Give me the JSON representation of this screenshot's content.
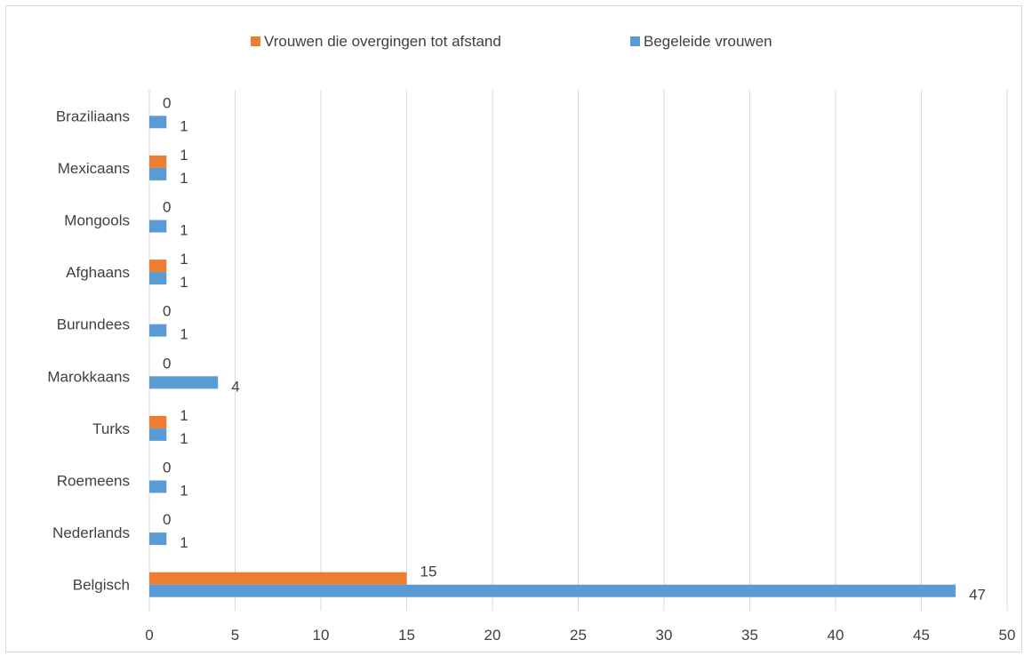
{
  "chart_data": {
    "type": "bar",
    "orientation": "horizontal",
    "categories": [
      "Braziliaans",
      "Mexicaans",
      "Mongools",
      "Afghaans",
      "Burundees",
      "Marokkaans",
      "Turks",
      "Roemeens",
      "Nederlands",
      "Belgisch"
    ],
    "series": [
      {
        "name": "Vrouwen die overgingen tot afstand",
        "color": "#ed7d31",
        "values": [
          0,
          1,
          0,
          1,
          0,
          0,
          1,
          0,
          0,
          15
        ]
      },
      {
        "name": "Begeleide vrouwen",
        "color": "#5b9bd5",
        "values": [
          1,
          1,
          1,
          1,
          1,
          4,
          1,
          1,
          1,
          47
        ]
      }
    ],
    "xlim": [
      0,
      50
    ],
    "xticks": [
      0,
      5,
      10,
      15,
      20,
      25,
      30,
      35,
      40,
      45,
      50
    ],
    "grid": "vertical",
    "legend": "top-center",
    "data_labels": true,
    "title": "",
    "xlabel": "",
    "ylabel": ""
  }
}
